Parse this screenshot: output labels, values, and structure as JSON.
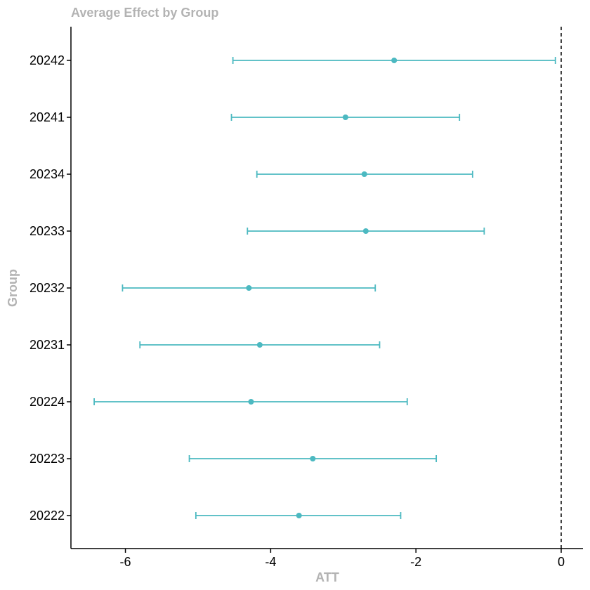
{
  "chart_data": {
    "type": "errorbar",
    "title": "Average Effect by Group",
    "xlabel": "ATT",
    "ylabel": "Group",
    "xlim": [
      -6.75,
      0.3
    ],
    "x_ticks": [
      -6,
      -4,
      -2,
      0
    ],
    "x_tick_labels": [
      "-6",
      "-4",
      "-2",
      "0"
    ],
    "reference_line": 0,
    "grid": false,
    "color": "#4cb9c1",
    "groups": [
      {
        "group": "20242",
        "att": -2.3,
        "lower": -4.52,
        "upper": -0.08
      },
      {
        "group": "20241",
        "att": -2.97,
        "lower": -4.54,
        "upper": -1.4
      },
      {
        "group": "20234",
        "att": -2.71,
        "lower": -4.19,
        "upper": -1.22
      },
      {
        "group": "20233",
        "att": -2.69,
        "lower": -4.32,
        "upper": -1.06
      },
      {
        "group": "20232",
        "att": -4.3,
        "lower": -6.04,
        "upper": -2.56
      },
      {
        "group": "20231",
        "att": -4.15,
        "lower": -5.8,
        "upper": -2.5
      },
      {
        "group": "20224",
        "att": -4.27,
        "lower": -6.43,
        "upper": -2.12
      },
      {
        "group": "20223",
        "att": -3.42,
        "lower": -5.12,
        "upper": -1.72
      },
      {
        "group": "20222",
        "att": -3.61,
        "lower": -5.03,
        "upper": -2.21
      }
    ]
  }
}
